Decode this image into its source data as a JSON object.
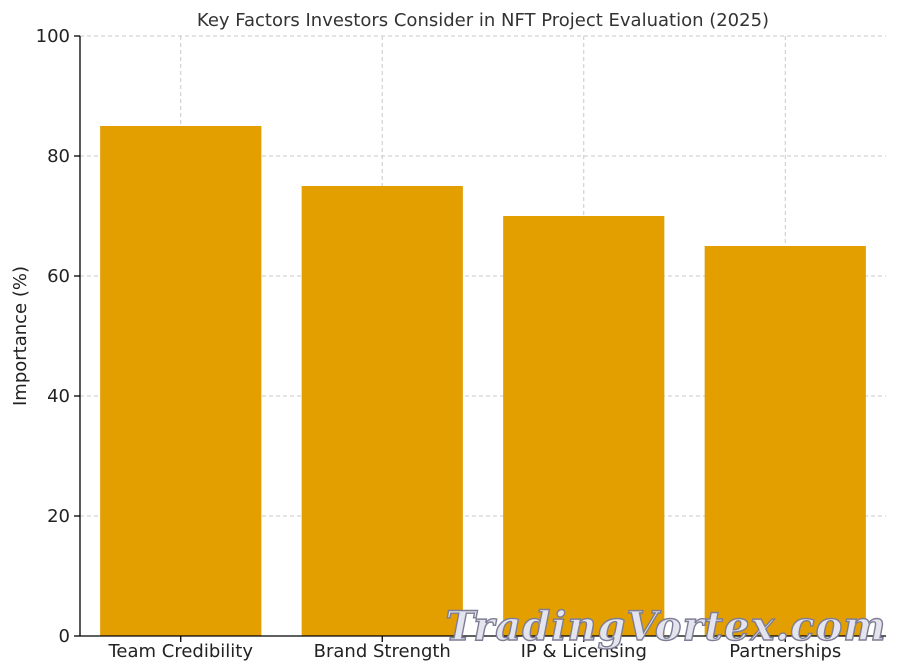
{
  "chart_data": {
    "type": "bar",
    "title": "Key Factors Investors Consider in NFT Project Evaluation (2025)",
    "xlabel": "",
    "ylabel": "Importance (%)",
    "categories": [
      "Team Credibility",
      "Brand Strength",
      "IP & Licensing",
      "Partnerships"
    ],
    "values": [
      85,
      75,
      70,
      65
    ],
    "ylim": [
      0,
      100
    ],
    "yticks": [
      0,
      20,
      40,
      60,
      80,
      100
    ],
    "grid": true,
    "bar_color": "#E39E00"
  },
  "watermark": "TradingVortex.com"
}
